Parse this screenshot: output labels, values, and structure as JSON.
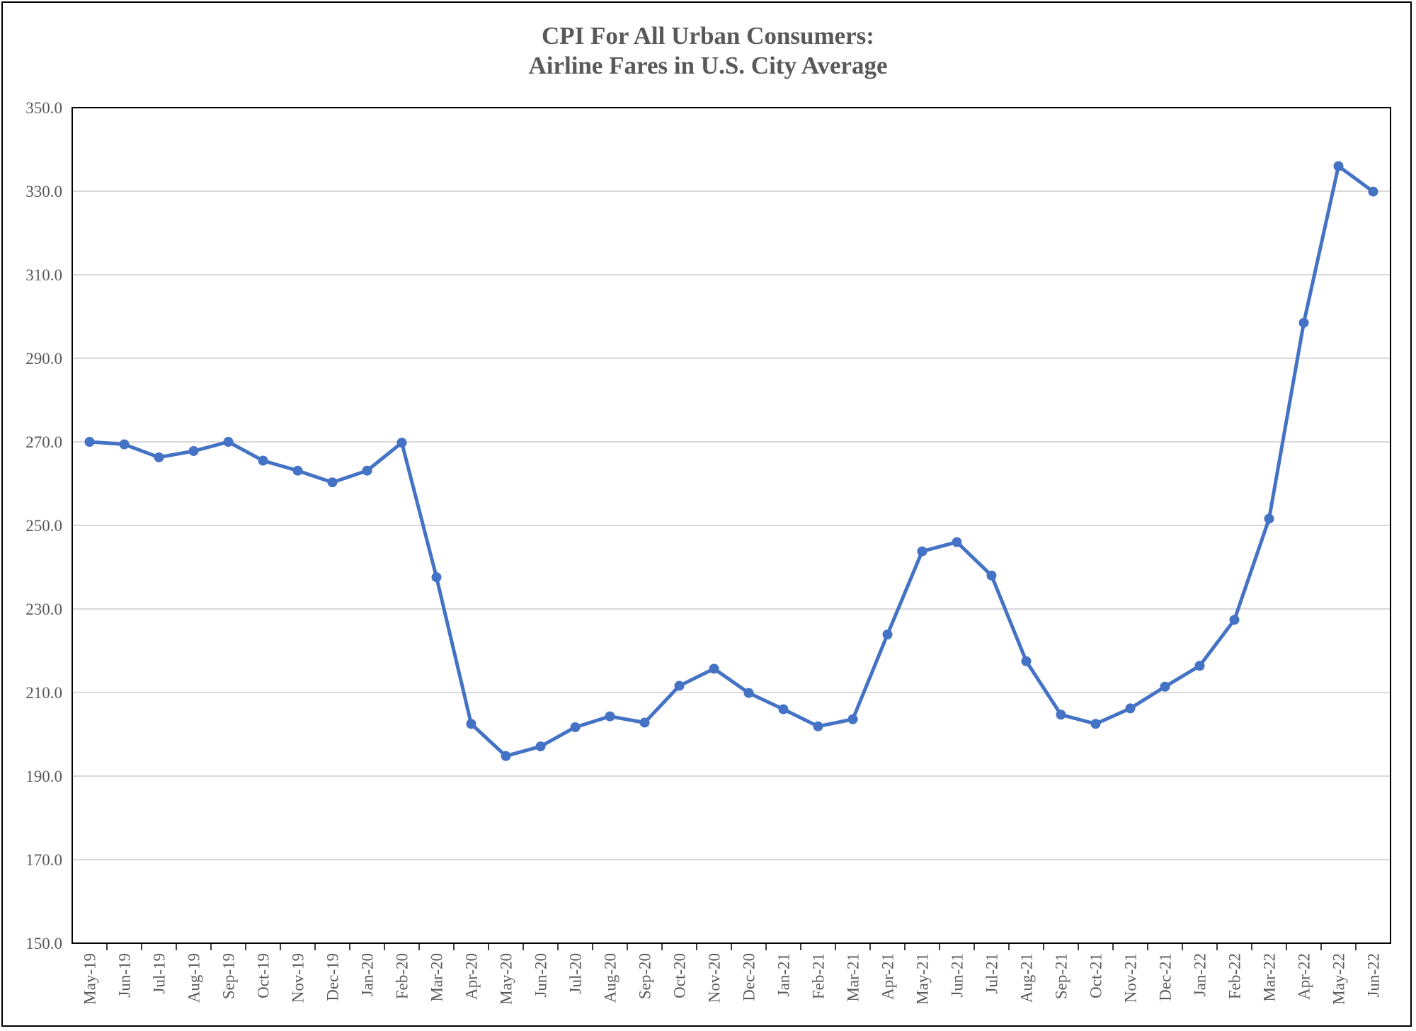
{
  "chart_data": {
    "type": "line",
    "title": [
      "CPI For All Urban Consumers:",
      "Airline Fares in U.S. City Average"
    ],
    "xlabel": "",
    "ylabel": "",
    "ylim": [
      150,
      350
    ],
    "yticks": [
      "150.0",
      "170.0",
      "190.0",
      "210.0",
      "230.0",
      "250.0",
      "270.0",
      "290.0",
      "310.0",
      "330.0",
      "350.0"
    ],
    "grid": "horizontal",
    "legend": "none",
    "color": "#4472C4",
    "categories": [
      "May-19",
      "Jun-19",
      "Jul-19",
      "Aug-19",
      "Sep-19",
      "Oct-19",
      "Nov-19",
      "Dec-19",
      "Jan-20",
      "Feb-20",
      "Mar-20",
      "Apr-20",
      "May-20",
      "Jun-20",
      "Jul-20",
      "Aug-20",
      "Sep-20",
      "Oct-20",
      "Nov-20",
      "Dec-20",
      "Jan-21",
      "Feb-21",
      "Mar-21",
      "Apr-21",
      "May-21",
      "Jun-21",
      "Jul-21",
      "Aug-21",
      "Sep-21",
      "Oct-21",
      "Nov-21",
      "Dec-21",
      "Jan-22",
      "Feb-22",
      "Mar-22",
      "Apr-22",
      "May-22",
      "Jun-22"
    ],
    "values": [
      270.0,
      269.4,
      266.3,
      267.8,
      270.0,
      265.5,
      263.1,
      260.3,
      263.1,
      269.8,
      237.6,
      202.5,
      194.8,
      197.1,
      201.7,
      204.3,
      202.8,
      211.6,
      215.7,
      209.9,
      206.0,
      201.9,
      203.6,
      223.9,
      243.8,
      246.0,
      238.0,
      217.5,
      204.7,
      202.5,
      206.2,
      211.4,
      216.4,
      227.4,
      251.6,
      298.5,
      336.0,
      329.9
    ]
  }
}
